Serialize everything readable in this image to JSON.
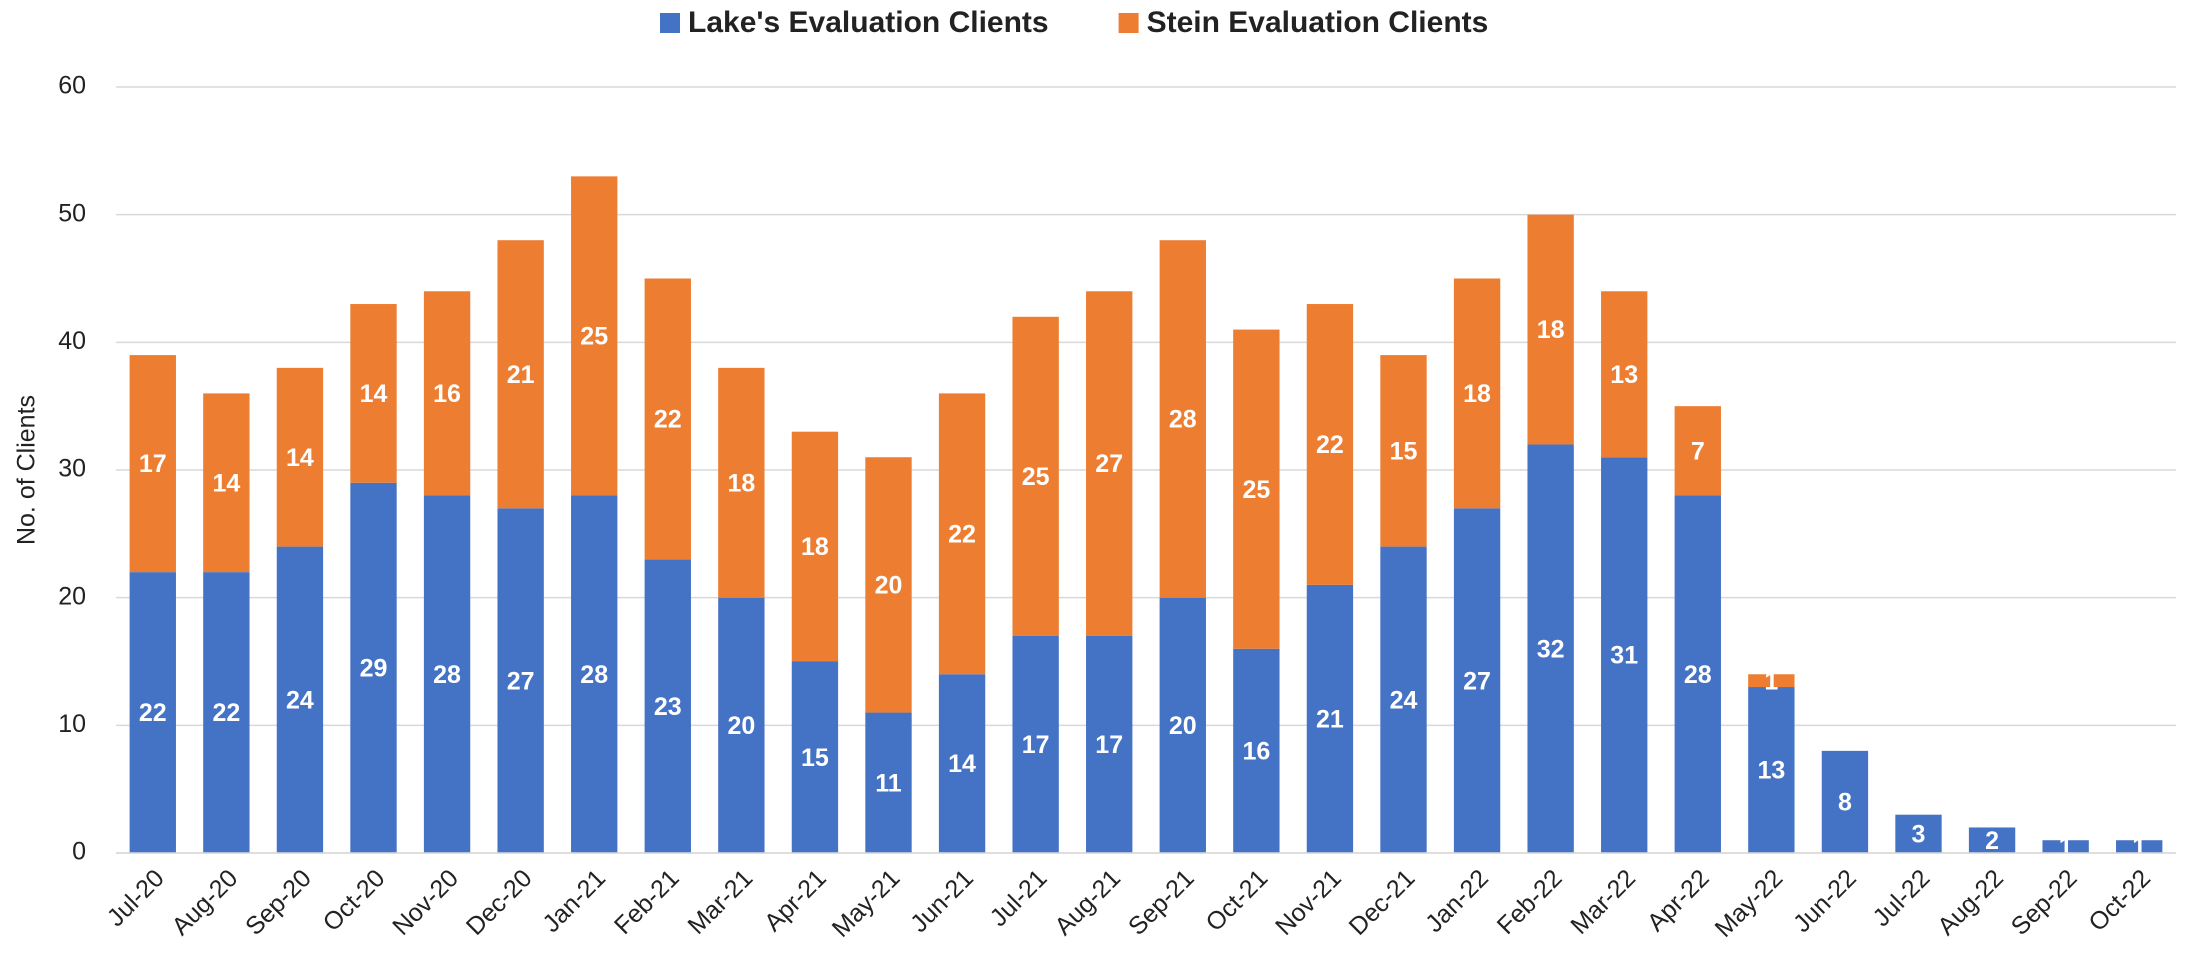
{
  "chart_data": {
    "type": "bar",
    "stacked": true,
    "y_label": "No. of Clients",
    "categories": [
      "Jul-20",
      "Aug-20",
      "Sep-20",
      "Oct-20",
      "Nov-20",
      "Dec-20",
      "Jan-21",
      "Feb-21",
      "Mar-21",
      "Apr-21",
      "May-21",
      "Jun-21",
      "Jul-21",
      "Aug-21",
      "Sep-21",
      "Oct-21",
      "Nov-21",
      "Dec-21",
      "Jan-22",
      "Feb-22",
      "Mar-22",
      "Apr-22",
      "May-22",
      "Jun-22",
      "Jul-22",
      "Aug-22",
      "Sep-22",
      "Oct-22"
    ],
    "series": [
      {
        "name": "Lake's Evaluation Clients",
        "color": "#4472c4",
        "values": [
          22,
          22,
          24,
          29,
          28,
          27,
          28,
          23,
          20,
          15,
          11,
          14,
          17,
          17,
          20,
          16,
          21,
          24,
          27,
          32,
          31,
          28,
          13,
          8,
          3,
          2,
          1,
          1
        ]
      },
      {
        "name": "Stein Evaluation Clients",
        "color": "#ed7d31",
        "values": [
          17,
          14,
          14,
          14,
          16,
          21,
          25,
          22,
          18,
          18,
          20,
          22,
          25,
          27,
          28,
          25,
          22,
          15,
          18,
          18,
          13,
          7,
          1,
          null,
          null,
          null,
          null,
          null
        ]
      }
    ],
    "ylim": [
      0,
      60
    ],
    "yticks": [
      0,
      10,
      20,
      30,
      40,
      50,
      60
    ],
    "grid": true,
    "legend": "top"
  }
}
